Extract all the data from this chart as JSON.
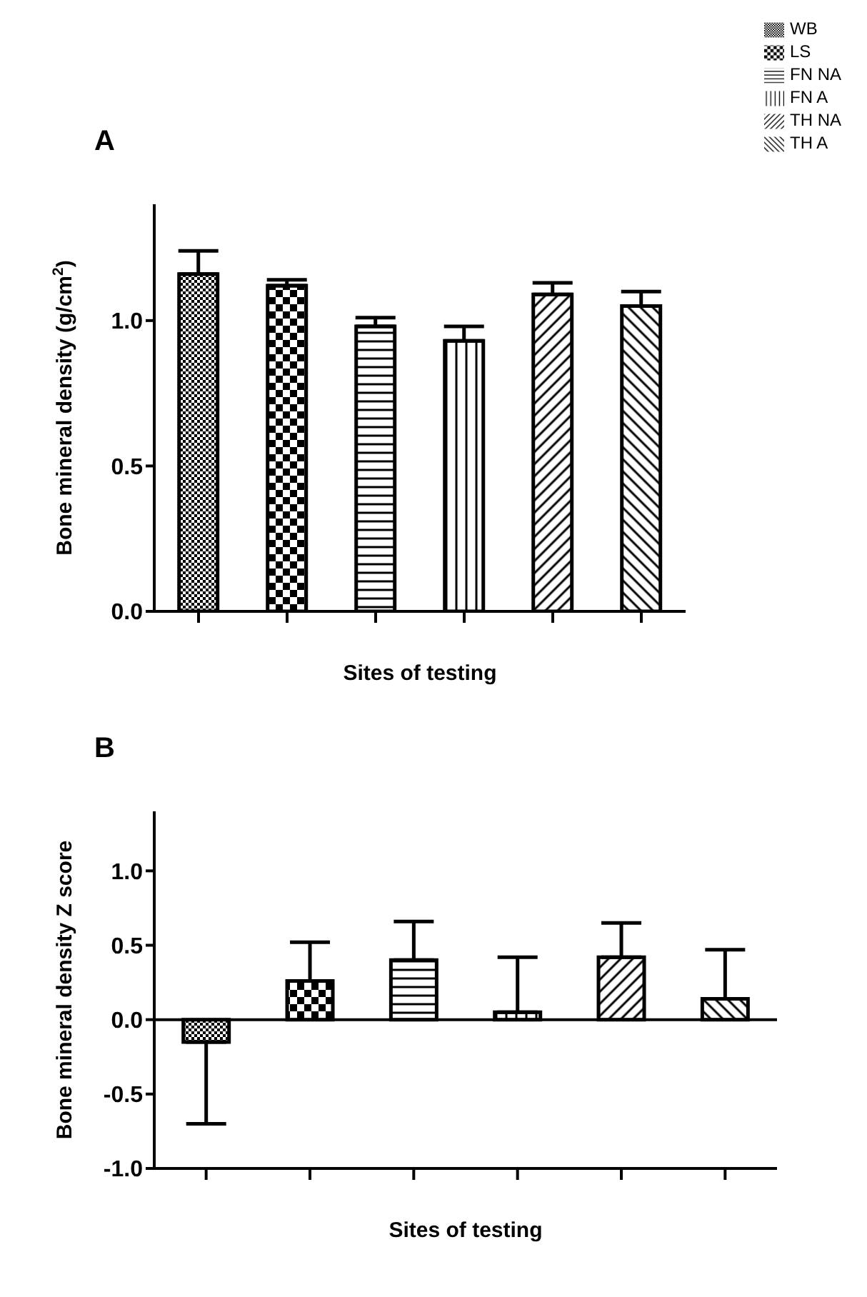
{
  "chart_data": [
    {
      "type": "bar",
      "title": "A",
      "xlabel": "Sites of testing",
      "ylabel": "Bone mineral density (g/cm$^{2}$)",
      "categories": [
        null,
        null,
        null,
        null,
        null,
        null
      ],
      "ylim": [
        0,
        1.4
      ],
      "yticks": [
        {
          "value": 0,
          "label": "0.0"
        },
        {
          "value": 0.5,
          "label": "0.5"
        },
        {
          "value": 1,
          "label": "1.0"
        }
      ],
      "legend": "top right",
      "grid": false,
      "series": [
        {
          "name": "WB",
          "color": "#000000",
          "values": [
            1.16,
            null,
            null,
            null,
            null,
            null
          ],
          "errors": [
            [
              1.16,
              1.24
            ],
            null,
            null,
            null,
            null,
            null
          ]
        },
        {
          "name": "LS",
          "color": "#000000",
          "values": [
            null,
            1.12,
            null,
            null,
            null,
            null
          ],
          "errors": [
            null,
            [
              1.12,
              1.14
            ],
            null,
            null,
            null,
            null
          ]
        },
        {
          "name": "FN NA",
          "color": "#000000",
          "values": [
            null,
            null,
            0.98,
            null,
            null,
            null
          ],
          "errors": [
            null,
            null,
            [
              0.98,
              1.01
            ],
            null,
            null,
            null
          ]
        },
        {
          "name": "FN A",
          "color": "#000000",
          "values": [
            null,
            null,
            null,
            0.93,
            null,
            null
          ],
          "errors": [
            null,
            null,
            null,
            [
              0.93,
              0.98
            ],
            null,
            null
          ]
        },
        {
          "name": "TH NA",
          "color": "#000000",
          "values": [
            null,
            null,
            null,
            null,
            1.09,
            null
          ],
          "errors": [
            null,
            null,
            null,
            null,
            [
              1.09,
              1.13
            ],
            null
          ]
        },
        {
          "name": "TH A",
          "color": "#000000",
          "values": [
            null,
            null,
            null,
            null,
            null,
            1.05
          ],
          "errors": [
            null,
            null,
            null,
            null,
            null,
            [
              1.05,
              1.1
            ]
          ]
        }
      ]
    },
    {
      "type": "bar",
      "title": "B",
      "xlabel": "Sites of testing",
      "ylabel": "Bone mineral density Z score",
      "categories": [
        null,
        null,
        null,
        null,
        null,
        null
      ],
      "ylim": [
        -1,
        1.4
      ],
      "yticks": [
        {
          "value": -1,
          "label": "-1.0"
        },
        {
          "value": -0.5,
          "label": "-0.5"
        },
        {
          "value": 0,
          "label": "0.0"
        },
        {
          "value": 0.5,
          "label": "0.5"
        },
        {
          "value": 1,
          "label": "1.0"
        }
      ],
      "grid": false,
      "ref_lines": [
        {
          "axis": "y",
          "value": 0,
          "color": "#000000"
        }
      ],
      "series": [
        {
          "color": "#000000",
          "values": [
            -0.15,
            null,
            null,
            null,
            null,
            null
          ],
          "errors": [
            [
              -0.7,
              -0.15
            ],
            null,
            null,
            null,
            null,
            null
          ]
        },
        {
          "color": "#000000",
          "values": [
            null,
            0.26,
            null,
            null,
            null,
            null
          ],
          "errors": [
            null,
            [
              0.26,
              0.52
            ],
            null,
            null,
            null,
            null
          ]
        },
        {
          "color": "#000000",
          "values": [
            null,
            null,
            0.4,
            null,
            null,
            null
          ],
          "errors": [
            null,
            null,
            [
              0.4,
              0.66
            ],
            null,
            null,
            null
          ]
        },
        {
          "color": "#000000",
          "values": [
            null,
            null,
            null,
            0.05,
            null,
            null
          ],
          "errors": [
            null,
            null,
            null,
            [
              0.05,
              0.42
            ],
            null,
            null
          ]
        },
        {
          "color": "#000000",
          "values": [
            null,
            null,
            null,
            null,
            0.42,
            null
          ],
          "errors": [
            null,
            null,
            null,
            null,
            [
              0.42,
              0.65
            ],
            null
          ]
        },
        {
          "color": "#000000",
          "values": [
            null,
            null,
            null,
            null,
            null,
            0.14
          ],
          "errors": [
            null,
            null,
            null,
            null,
            null,
            [
              0.14,
              0.47
            ]
          ]
        }
      ]
    }
  ]
}
